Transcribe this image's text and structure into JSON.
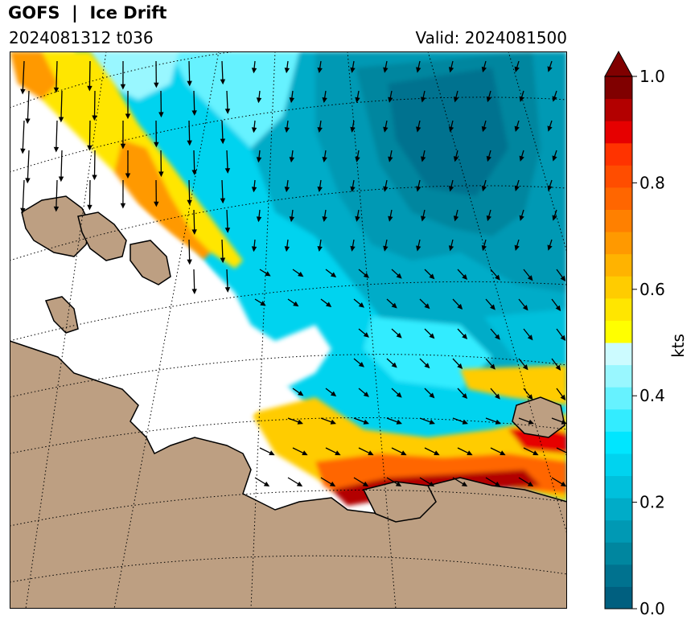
{
  "header": {
    "title": "GOFS  |  Ice Drift",
    "run": "2024081312 t036",
    "valid": "Valid: 2024081500"
  },
  "colorbar": {
    "label": "kts",
    "min": 0.0,
    "max": 1.0,
    "ticks": [
      "0.0",
      "0.2",
      "0.4",
      "0.6",
      "0.8",
      "1.0"
    ],
    "extend": "max",
    "colors": [
      "#005f7f",
      "#00728f",
      "#00869f",
      "#0099b4",
      "#00acc8",
      "#00c0dc",
      "#00d3ef",
      "#00e6ff",
      "#33ecff",
      "#66f2ff",
      "#99f7ff",
      "#ccfbff",
      "#ffff00",
      "#ffe600",
      "#ffcc00",
      "#ffb300",
      "#ff9900",
      "#ff8000",
      "#ff6600",
      "#ff4d00",
      "#ff3300",
      "#e60000",
      "#b30000",
      "#800000"
    ],
    "extend_color": "#800000"
  },
  "map": {
    "land_color": "#bd9f82",
    "no_ice_color": "#ffffff",
    "gridlines": "dotted"
  }
}
